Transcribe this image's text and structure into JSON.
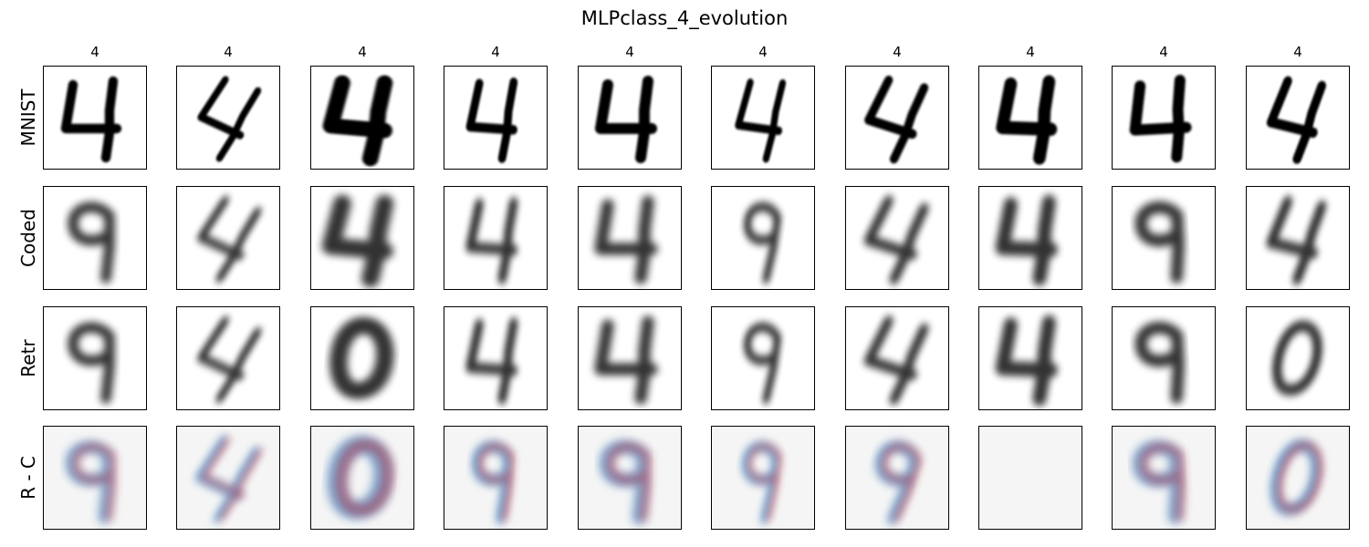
{
  "title": "MLPclass_4_evolution",
  "column_labels": [
    "4",
    "4",
    "4",
    "4",
    "4",
    "4",
    "4",
    "4",
    "4",
    "4"
  ],
  "row_labels": [
    "MNIST",
    "Coded",
    "Retr",
    "R - C"
  ],
  "colors": {
    "ink": "#000000",
    "diff_background": "#f5f5f5",
    "diff_positive": "#b2182b",
    "diff_negative": "#2166ac"
  },
  "rows": [
    {
      "name": "MNIST",
      "style": "sharp",
      "glyphs": [
        "4",
        "4",
        "4",
        "4",
        "4",
        "4",
        "4",
        "4",
        "4",
        "4"
      ]
    },
    {
      "name": "Coded",
      "style": "blurred",
      "glyphs": [
        "9",
        "4",
        "4",
        "4",
        "4",
        "9",
        "4",
        "4",
        "9",
        "4"
      ]
    },
    {
      "name": "Retr",
      "style": "blurred",
      "glyphs": [
        "9",
        "4",
        "0",
        "4",
        "4",
        "9",
        "4",
        "4",
        "9",
        "0"
      ]
    },
    {
      "name": "R - C",
      "style": "difference",
      "glyphs": [
        "9",
        "4",
        "0",
        "9",
        "9",
        "9",
        "9",
        "",
        "9",
        "0"
      ]
    }
  ]
}
